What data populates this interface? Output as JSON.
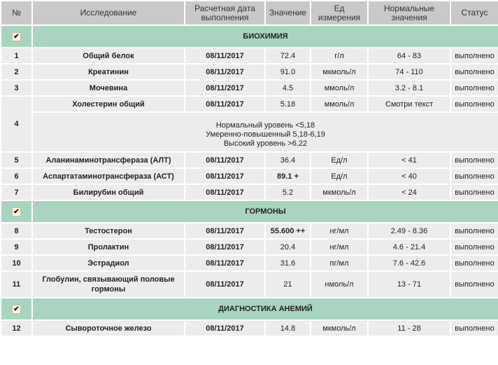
{
  "header": [
    "№",
    "Исследование",
    "Расчетная дата выполнения",
    "Значение",
    "Ед измерения",
    "Нормальные значения",
    "Статус"
  ],
  "check_glyph": "✔",
  "sections": [
    {
      "title": "БИОХИМИЯ",
      "rows": [
        {
          "n": "1",
          "name": "Общий белок",
          "date": "08/11/2017",
          "value": "72.4",
          "unit": "г/л",
          "norm": "64 - 83",
          "status": "выполнено"
        },
        {
          "n": "2",
          "name": "Креатинин",
          "date": "08/11/2017",
          "value": "91.0",
          "unit": "мкмоль/л",
          "norm": "74 - 110",
          "status": "выполнено"
        },
        {
          "n": "3",
          "name": "Мочевина",
          "date": "08/11/2017",
          "value": "4.5",
          "unit": "ммоль/л",
          "norm": "3.2 - 8.1",
          "status": "выполнено"
        },
        {
          "n": "4",
          "name": "Холестерин общий",
          "date": "08/11/2017",
          "value": "5.18",
          "unit": "ммоль/л",
          "norm": "Смотри текст",
          "status": "выполнено",
          "note": [
            "Нормальный уровень <5,18",
            "Умеренно-повышенный 5,18-6,19",
            "Высокий уровень >6.22"
          ]
        },
        {
          "n": "5",
          "name": "Аланинаминотрансфераза (АЛТ)",
          "date": "08/11/2017",
          "value": "36.4",
          "unit": "Ед/л",
          "norm": "< 41",
          "status": "выполнено"
        },
        {
          "n": "6",
          "name": "Аспартатаминотрансфераза (АСТ)",
          "date": "08/11/2017",
          "value": "89.1 +",
          "unit": "Ед/л",
          "norm": "< 40",
          "status": "выполнено",
          "flag": true
        },
        {
          "n": "7",
          "name": "Билирубин общий",
          "date": "08/11/2017",
          "value": "5.2",
          "unit": "мкмоль/л",
          "norm": "< 24",
          "status": "выполнено"
        }
      ]
    },
    {
      "title": "ГОРМОНЫ",
      "rows": [
        {
          "n": "8",
          "name": "Тестостерон",
          "date": "08/11/2017",
          "value": "55.600 ++",
          "unit": "нг/мл",
          "norm": "2.49 - 8.36",
          "status": "выполнено",
          "flag": true
        },
        {
          "n": "9",
          "name": "Пролактин",
          "date": "08/11/2017",
          "value": "20.4",
          "unit": "нг/мл",
          "norm": "4.6 - 21.4",
          "status": "выполнено"
        },
        {
          "n": "10",
          "name": "Эстрадиол",
          "date": "08/11/2017",
          "value": "31.6",
          "unit": "пг/мл",
          "norm": "7.6 - 42.6",
          "status": "выполнено"
        },
        {
          "n": "11",
          "name": "Глобулин, связывающий половые гормоны",
          "date": "08/11/2017",
          "value": "21",
          "unit": "нмоль/л",
          "norm": "13 - 71",
          "status": "выполнено",
          "tall": true
        }
      ]
    },
    {
      "title": "ДИАГНОСТИКА АНЕМИЙ",
      "rows": [
        {
          "n": "12",
          "name": "Сывороточное железо",
          "date": "08/11/2017",
          "value": "14.8",
          "unit": "мкмоль/л",
          "norm": "11 - 28",
          "status": "выполнено"
        }
      ]
    }
  ]
}
